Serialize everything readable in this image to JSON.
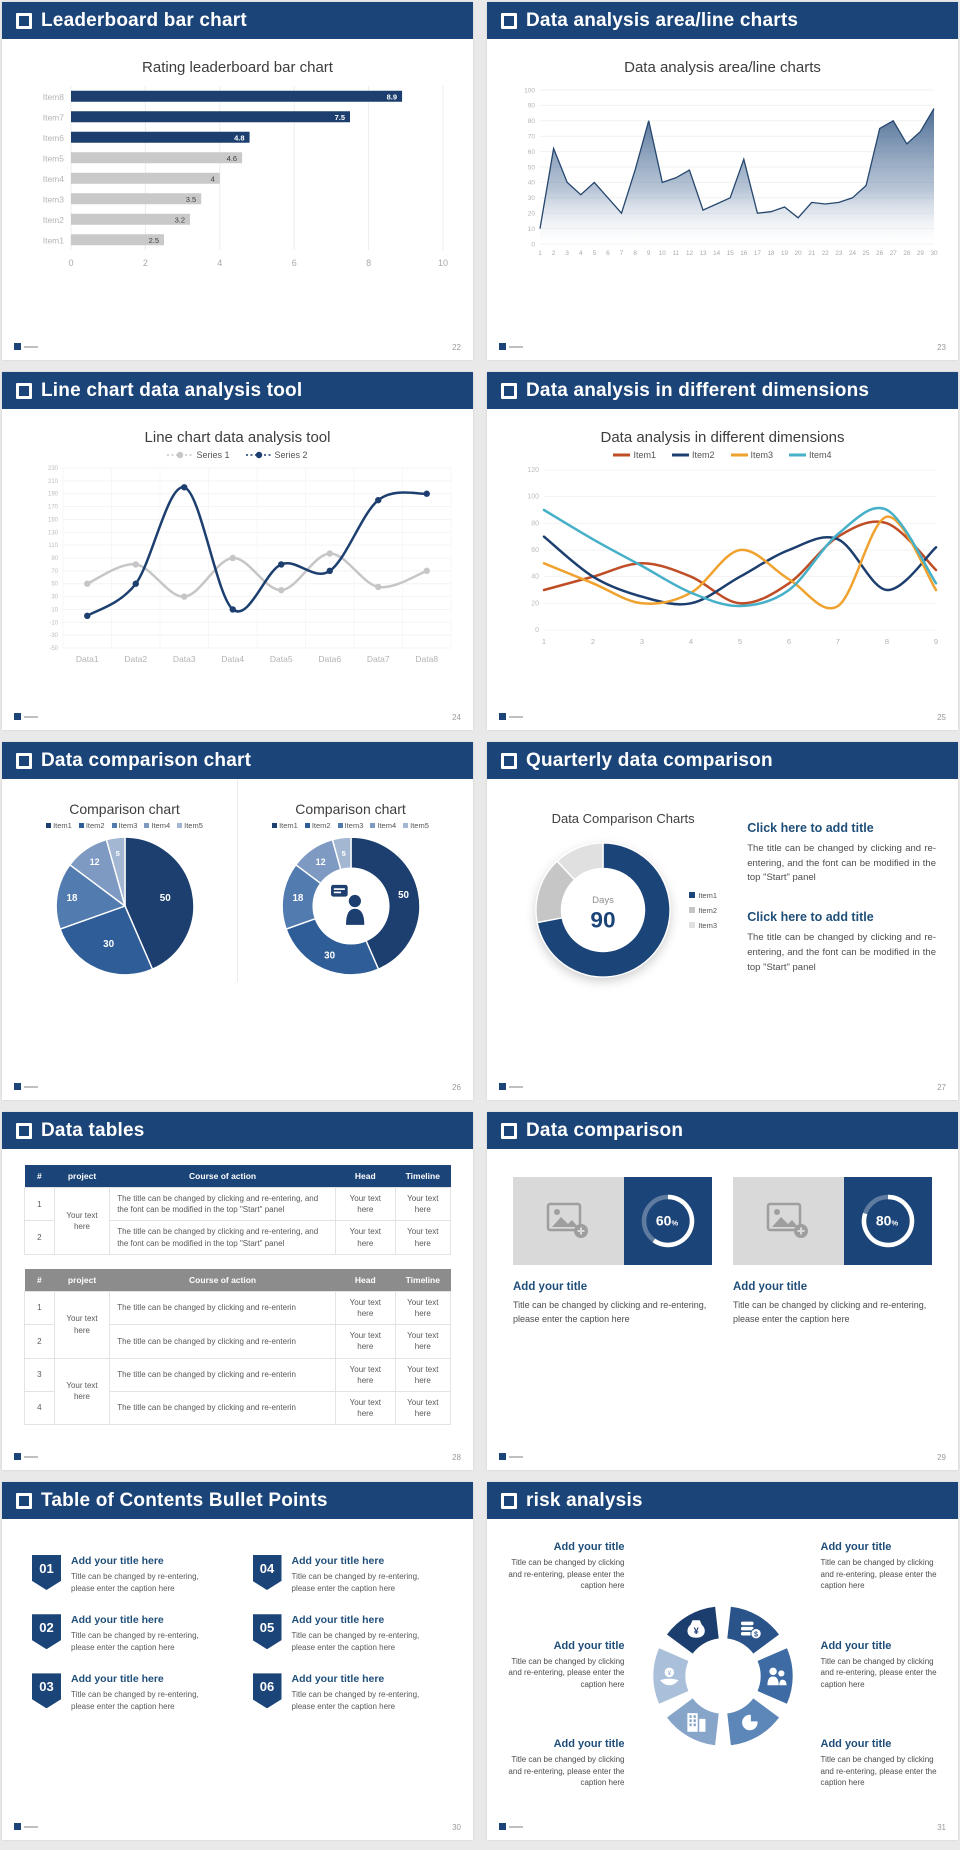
{
  "colors": {
    "header_bg": "#1b4478",
    "navy": "#1c3f6f",
    "bar_gray": "#c9c9c9",
    "accent_text": "#1f4e79",
    "pie_palette": [
      "#1c3f6f",
      "#2e5d97",
      "#527cb0",
      "#7e9ac2",
      "#a3b7d3"
    ]
  },
  "slides": [
    {
      "header": "Leaderboard bar chart",
      "page_number": "22",
      "chart_title": "Rating leaderboard bar chart"
    },
    {
      "header": "Data analysis area/line charts",
      "page_number": "23",
      "chart_title": "Data analysis area/line charts"
    },
    {
      "header": "Line chart data analysis tool",
      "page_number": "24",
      "chart_title": "Line chart data analysis tool"
    },
    {
      "header": "Data analysis in different dimensions",
      "page_number": "25",
      "chart_title": "Data analysis in different dimensions"
    },
    {
      "header": "Data comparison chart",
      "page_number": "26",
      "chart_title_left": "Comparison chart",
      "chart_title_right": "Comparison chart"
    },
    {
      "header": "Quarterly data comparison",
      "page_number": "27",
      "chart_label": "Data Comparison Charts",
      "blocks": [
        {
          "title": "Click here to add title",
          "body": "The title can be changed by clicking and re-entering, and the font can be modified in the top \"Start\" panel"
        },
        {
          "title": "Click here to add title",
          "body": "The title can be changed by clicking and re-entering, and the font can be modified in the top \"Start\" panel"
        }
      ]
    },
    {
      "header": "Data tables",
      "page_number": "28",
      "tables": [
        {
          "style": "navy",
          "headers": [
            "#",
            "project",
            "Course of action",
            "Head",
            "Timeline"
          ],
          "groups": [
            {
              "project": "Your text here",
              "rows": [
                {
                  "n": "1",
                  "course": "The title can be changed by clicking and re-entering, and the font can be modified in the top \"Start\" panel",
                  "head": "Your text here",
                  "timeline": "Your text here"
                },
                {
                  "n": "2",
                  "course": "The title can be changed by clicking and re-entering, and the font can be modified in the top \"Start\" panel",
                  "head": "Your text here",
                  "timeline": "Your text here"
                }
              ]
            }
          ]
        },
        {
          "style": "gray",
          "headers": [
            "#",
            "project",
            "Course of action",
            "Head",
            "Timeline"
          ],
          "groups": [
            {
              "project": "Your text here",
              "rows": [
                {
                  "n": "1",
                  "course": "The title can be changed by clicking and re-enterin",
                  "head": "Your text here",
                  "timeline": "Your text here"
                },
                {
                  "n": "2",
                  "course": "The title can be changed by clicking and re-enterin",
                  "head": "Your text here",
                  "timeline": "Your text here"
                }
              ]
            },
            {
              "project": "Your text here",
              "rows": [
                {
                  "n": "3",
                  "course": "The title can be changed by clicking and re-enterin",
                  "head": "Your text here",
                  "timeline": "Your text here"
                },
                {
                  "n": "4",
                  "course": "The title can be changed by clicking and re-enterin",
                  "head": "Your text here",
                  "timeline": "Your text here"
                }
              ]
            }
          ]
        }
      ]
    },
    {
      "header": "Data comparison",
      "page_number": "29",
      "cards": [
        {
          "title": "Add your title",
          "body": "Title can be changed by clicking and re-entering, please enter the caption here"
        },
        {
          "title": "Add your title",
          "body": "Title can be changed by clicking and re-entering, please enter the caption here"
        }
      ]
    },
    {
      "header": "Table of Contents Bullet Points",
      "page_number": "30",
      "items": [
        {
          "num": "01",
          "title": "Add your title here",
          "body": "Title can be changed by re-entering, please enter the caption here"
        },
        {
          "num": "04",
          "title": "Add your title here",
          "body": "Title can be changed by re-entering, please enter the caption here"
        },
        {
          "num": "02",
          "title": "Add your title here",
          "body": "Title can be changed by re-entering, please enter the caption here"
        },
        {
          "num": "05",
          "title": "Add your title here",
          "body": "Title can be changed by re-entering, please enter the caption here"
        },
        {
          "num": "03",
          "title": "Add your title here",
          "body": "Title can be changed by re-entering, please enter the caption here"
        },
        {
          "num": "06",
          "title": "Add your title here",
          "body": "Title can be changed by re-entering, please enter the caption here"
        }
      ]
    },
    {
      "header": "risk analysis",
      "page_number": "31",
      "left_blocks": [
        {
          "title": "Add your title",
          "body": "Title can be changed by clicking and re-entering, please enter the caption here"
        },
        {
          "title": "Add your title",
          "body": "Title can be changed by clicking and re-entering, please enter the caption here"
        },
        {
          "title": "Add your title",
          "body": "Title can be changed by clicking and re-entering, please enter the caption here"
        }
      ],
      "right_blocks": [
        {
          "title": "Add your title",
          "body": "Title can be changed by clicking and re-entering, please enter the caption here"
        },
        {
          "title": "Add your title",
          "body": "Title can be changed by clicking and re-entering, please enter the caption here"
        },
        {
          "title": "Add your title",
          "body": "Title can be changed by clicking and re-entering, please enter the caption here"
        }
      ]
    }
  ],
  "chart_data": [
    {
      "slot": "leaderboard",
      "type": "bar",
      "orientation": "horizontal",
      "title": "Rating leaderboard bar chart",
      "categories": [
        "Item1",
        "Item2",
        "Item3",
        "Item4",
        "Item5",
        "Item6",
        "Item7",
        "Item8"
      ],
      "values": [
        2.5,
        3.2,
        3.5,
        4,
        4.6,
        4.8,
        7.5,
        8.9
      ],
      "highlighted": [
        "Item6",
        "Item7",
        "Item8"
      ],
      "highlight_color": "#1c3f6f",
      "base_color": "#c9c9c9",
      "xlim": [
        0,
        10
      ],
      "xticks": [
        0,
        2,
        4,
        6,
        8,
        10
      ]
    },
    {
      "slot": "area",
      "type": "area",
      "title": "Data analysis area/line charts",
      "values": [
        10,
        62,
        40,
        32,
        40,
        30,
        20,
        48,
        80,
        40,
        43,
        48,
        22,
        26,
        30,
        55,
        20,
        21,
        24,
        17,
        27,
        26,
        27,
        30,
        38,
        75,
        80,
        65,
        73,
        88
      ],
      "x_start": 1,
      "ylim": [
        0,
        100
      ],
      "ytick_step": 10,
      "line_color": "#26476f"
    },
    {
      "slot": "line-tool",
      "type": "line",
      "title": "Line chart data analysis tool",
      "markers": true,
      "categories": [
        "Data1",
        "Data2",
        "Data3",
        "Data4",
        "Data5",
        "Data6",
        "Data7",
        "Data8"
      ],
      "ylim": [
        -50,
        230
      ],
      "ytick_step": 20,
      "series": [
        {
          "name": "Series 1",
          "color": "#c6c6c6",
          "values": [
            50,
            80,
            30,
            90,
            40,
            97,
            45,
            70
          ]
        },
        {
          "name": "Series 2",
          "color": "#1c3f6f",
          "values": [
            0,
            50,
            200,
            10,
            80,
            70,
            180,
            190
          ]
        }
      ]
    },
    {
      "slot": "line-dim",
      "type": "line",
      "title": "Data analysis in different dimensions",
      "markers": false,
      "categories": [
        "1",
        "2",
        "3",
        "4",
        "5",
        "6",
        "7",
        "8",
        "9"
      ],
      "ylim": [
        0,
        120
      ],
      "ytick_step": 20,
      "series": [
        {
          "name": "Item1",
          "color": "#bf4d26",
          "values": [
            30,
            40,
            50,
            40,
            20,
            35,
            70,
            80,
            45
          ]
        },
        {
          "name": "Item2",
          "color": "#1c3f6f",
          "values": [
            70,
            40,
            25,
            20,
            40,
            60,
            68,
            30,
            62
          ]
        },
        {
          "name": "Item3",
          "color": "#f0a22e",
          "values": [
            50,
            35,
            20,
            28,
            60,
            38,
            18,
            85,
            30
          ]
        },
        {
          "name": "Item4",
          "color": "#45b0c8",
          "values": [
            90,
            68,
            48,
            28,
            18,
            30,
            72,
            90,
            35
          ]
        }
      ]
    },
    {
      "slot": "pie",
      "type": "pie",
      "title": "Comparison chart",
      "donut": 0,
      "show_labels": true,
      "categories": [
        "Item1",
        "Item2",
        "Item3",
        "Item4",
        "Item5"
      ],
      "values": [
        50,
        30,
        18,
        12,
        5
      ],
      "colors": [
        "#1c3f6f",
        "#2e5d97",
        "#527cb0",
        "#7e9ac2",
        "#a3b7d3"
      ]
    },
    {
      "slot": "donut",
      "type": "pie",
      "title": "Comparison chart",
      "donut": 0.56,
      "show_labels": true,
      "center_icon": "presenter-icon",
      "categories": [
        "Item1",
        "Item2",
        "Item3",
        "Item4",
        "Item5"
      ],
      "values": [
        50,
        30,
        18,
        12,
        5
      ],
      "colors": [
        "#1c3f6f",
        "#2e5d97",
        "#527cb0",
        "#7e9ac2",
        "#a3b7d3"
      ]
    },
    {
      "slot": "days",
      "type": "pie",
      "title": "Data Comparison Charts",
      "donut": 0.63,
      "show_labels": false,
      "categories": [
        "Item1",
        "Item2",
        "Item3"
      ],
      "values": [
        72,
        16,
        12
      ],
      "colors": [
        "#1b4478",
        "#c6c6c6",
        "#e0e0e0"
      ],
      "center_text": {
        "label": "Days",
        "value": "90"
      }
    },
    {
      "slot": "ring60",
      "type": "progress",
      "value": 60,
      "suffix": "%"
    },
    {
      "slot": "ring80",
      "type": "progress",
      "value": 80,
      "suffix": "%"
    },
    {
      "slot": "pinwheel",
      "type": "diagram-pinwheel",
      "segments": [
        {
          "icon": "money-bag-icon",
          "color": "#1c3e6e",
          "angle": -120
        },
        {
          "icon": "coins-icon",
          "color": "#2a5489",
          "angle": -60
        },
        {
          "icon": "people-icon",
          "color": "#3e6ba3",
          "angle": 0
        },
        {
          "icon": "pie-icon",
          "color": "#5d87b8",
          "angle": 60
        },
        {
          "icon": "building-icon",
          "color": "#87a5c9",
          "angle": 120
        },
        {
          "icon": "hand-coin-icon",
          "color": "#aabfd9",
          "angle": 180
        }
      ]
    }
  ]
}
